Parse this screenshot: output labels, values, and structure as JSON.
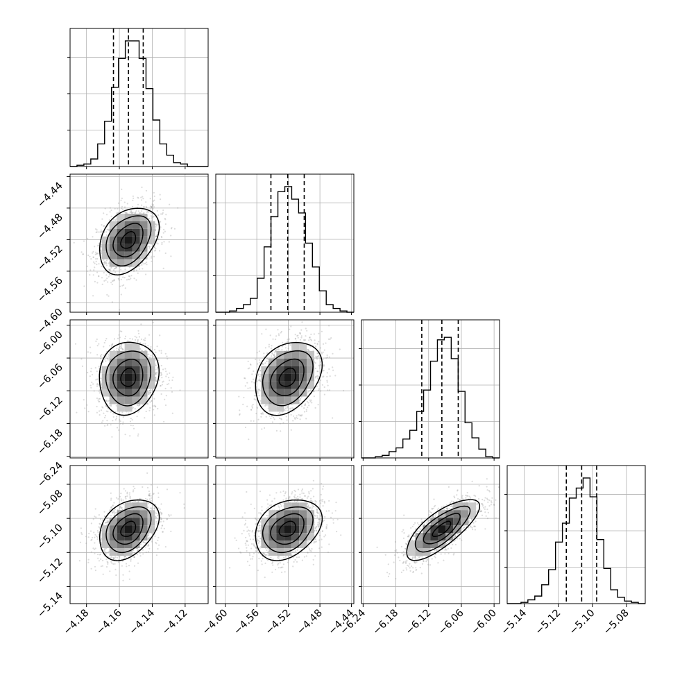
{
  "chart_data": {
    "type": "corner",
    "grid": true,
    "parameters": [
      {
        "ticks": [
          -4.18,
          -4.16,
          -4.14,
          -4.12
        ],
        "tick_labels": [
          "−4.18",
          "−4.16",
          "−4.14",
          "−4.12"
        ],
        "range": [
          -4.19,
          -4.106
        ]
      },
      {
        "ticks": [
          -4.6,
          -4.56,
          -4.52,
          -4.48,
          -4.44
        ],
        "tick_labels": [
          "−4.60",
          "−4.56",
          "−4.52",
          "−4.48",
          "−4.44"
        ],
        "range": [
          -4.612,
          -4.437
        ]
      },
      {
        "ticks": [
          -6.24,
          -6.18,
          -6.12,
          -6.06,
          -6.0
        ],
        "tick_labels": [
          "−6.24",
          "−6.18",
          "−6.12",
          "−6.06",
          "−6.00"
        ],
        "range": [
          -6.243,
          -5.99
        ]
      },
      {
        "ticks": [
          -5.14,
          -5.12,
          -5.1,
          -5.08
        ],
        "tick_labels": [
          "−5.14",
          "−5.12",
          "−5.10",
          "−5.08"
        ],
        "range": [
          -5.15,
          -5.069
        ]
      }
    ],
    "quantiles": [
      {
        "q16": -4.1636,
        "median": -4.1545,
        "q84": -4.1455
      },
      {
        "q16": -4.5421,
        "median": -4.5208,
        "q84": -4.4999
      },
      {
        "q16": -6.1325,
        "median": -6.0957,
        "q84": -6.0657
      },
      {
        "q16": -5.1153,
        "median": -5.1063,
        "q84": -5.0975
      }
    ],
    "marginal_histograms": [
      [
        0.0,
        0.01,
        0.02,
        0.06,
        0.18,
        0.36,
        0.63,
        0.86,
        1.0,
        1.0,
        0.86,
        0.62,
        0.37,
        0.18,
        0.09,
        0.03,
        0.02,
        0.0,
        0.0,
        0.0
      ],
      [
        0.0,
        0.0,
        0.01,
        0.03,
        0.06,
        0.11,
        0.27,
        0.52,
        0.76,
        0.96,
        1.0,
        0.9,
        0.79,
        0.55,
        0.36,
        0.17,
        0.06,
        0.03,
        0.01,
        0.0
      ],
      [
        0.0,
        0.0,
        0.01,
        0.02,
        0.05,
        0.08,
        0.15,
        0.22,
        0.37,
        0.54,
        0.77,
        0.94,
        0.96,
        0.79,
        0.53,
        0.28,
        0.16,
        0.07,
        0.01,
        0.0
      ],
      [
        0.0,
        0.0,
        0.01,
        0.03,
        0.06,
        0.15,
        0.27,
        0.49,
        0.64,
        0.84,
        0.92,
        1.0,
        0.85,
        0.51,
        0.28,
        0.11,
        0.05,
        0.02,
        0.01,
        0.0
      ]
    ],
    "pair_correlations": [
      {
        "row": 1,
        "col": 0,
        "rho": 0.35
      },
      {
        "row": 2,
        "col": 0,
        "rho": 0.1
      },
      {
        "row": 2,
        "col": 1,
        "rho": 0.3
      },
      {
        "row": 3,
        "col": 0,
        "rho": 0.35
      },
      {
        "row": 3,
        "col": 1,
        "rho": 0.3
      },
      {
        "row": 3,
        "col": 2,
        "rho": 0.75
      }
    ],
    "colors": {
      "line": "#000000",
      "scatter": "#9b9b9b",
      "grid": "#b0b0b0",
      "axis": "#000000"
    }
  }
}
